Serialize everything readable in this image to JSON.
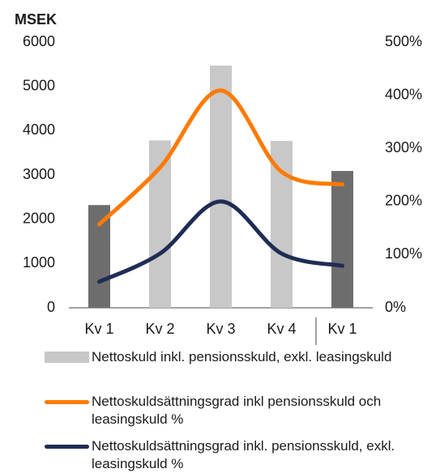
{
  "chart_data": {
    "type": "bar-line",
    "y_label": "MSEK",
    "categories": [
      "Kv 1",
      "Kv 2",
      "Kv 3",
      "Kv 4",
      "Kv 1"
    ],
    "series": [
      {
        "name": "Nettoskuld inkl. pensionsskuld, exkl. leasingskuld",
        "type": "bar",
        "color": "#c8c8c8",
        "colors": [
          "#6d6d6d",
          "#c8c8c8",
          "#c8c8c8",
          "#c8c8c8",
          "#6d6d6d"
        ],
        "values": [
          2320,
          3780,
          5470,
          3770,
          3090
        ]
      },
      {
        "name": "Nettoskuldsättningsgrad inkl pensionsskuld och leasingskuld %",
        "type": "line",
        "axis": "y2",
        "color": "#ff7a00",
        "values": [
          157,
          264,
          409,
          256,
          232
        ]
      },
      {
        "name": "Nettoskuldsättningsgrad inkl. pensionsskuld, exkl. leasingskuld %",
        "type": "line",
        "axis": "y2",
        "color": "#1f2d54",
        "values": [
          49,
          102,
          200,
          102,
          79
        ]
      }
    ],
    "ylim": [
      0,
      6000
    ],
    "yticks": [
      0,
      1000,
      2000,
      3000,
      4000,
      5000,
      6000
    ],
    "y2lim": [
      0,
      500
    ],
    "y2ticks": [
      {
        "value": 0,
        "label": "0%"
      },
      {
        "value": 100,
        "label": "100%"
      },
      {
        "value": 200,
        "label": "200%"
      },
      {
        "value": 300,
        "label": "300%"
      },
      {
        "value": 400,
        "label": "400%"
      },
      {
        "value": 500,
        "label": "500%"
      }
    ]
  }
}
